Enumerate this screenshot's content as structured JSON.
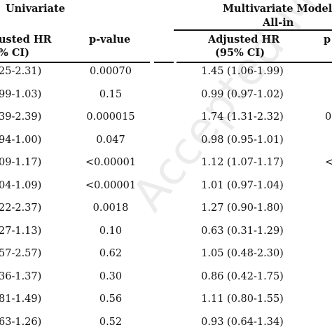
{
  "header": {
    "univariate": "Univariate",
    "multivariate": "Multivariate Model",
    "all_in": "All-in",
    "adj_hr_left_line1": "usted HR",
    "adj_hr_left_line2": "% CI)",
    "p_value": "p-value",
    "adj_hr_right_line1": "Adjusted HR",
    "adj_hr_right_line2": "(95% CI)",
    "right_edge_p": "p"
  },
  "rows": [
    {
      "ci": "25-2.31)",
      "p": "0.00070",
      "adj": "1.45 (1.06-1.99)",
      "edge": ""
    },
    {
      "ci": "99-1.03)",
      "p": "0.15",
      "adj": "0.99 (0.97-1.02)",
      "edge": ""
    },
    {
      "ci": "39-2.39)",
      "p": "0.000015",
      "adj": "1.74 (1.31-2.32)",
      "edge": "0"
    },
    {
      "ci": "94-1.00)",
      "p": "0.047",
      "adj": "0.98 (0.95-1.01)",
      "edge": ""
    },
    {
      "ci": "09-1.17)",
      "p": "<0.00001",
      "adj": "1.12 (1.07-1.17)",
      "edge": "<("
    },
    {
      "ci": "04-1.09)",
      "p": "<0.00001",
      "adj": "1.01 (0.97-1.04)",
      "edge": ""
    },
    {
      "ci": "22-2.37)",
      "p": "0.0018",
      "adj": "1.27 (0.90-1.80)",
      "edge": ""
    },
    {
      "ci": "27-1.13)",
      "p": "0.10",
      "adj": "0.63 (0.31-1.29)",
      "edge": ""
    },
    {
      "ci": "57-2.57)",
      "p": "0.62",
      "adj": "1.05 (0.48-2.30)",
      "edge": ""
    },
    {
      "ci": "36-1.37)",
      "p": "0.30",
      "adj": "0.86 (0.42-1.75)",
      "edge": ""
    },
    {
      "ci": "81-1.49)",
      "p": "0.56",
      "adj": "1.11 (0.80-1.55)",
      "edge": ""
    },
    {
      "ci": "63-1.26)",
      "p": "0.52",
      "adj": "0.93 (0.64-1.34)",
      "edge": ""
    }
  ],
  "watermark": "Accepted Manuscript"
}
